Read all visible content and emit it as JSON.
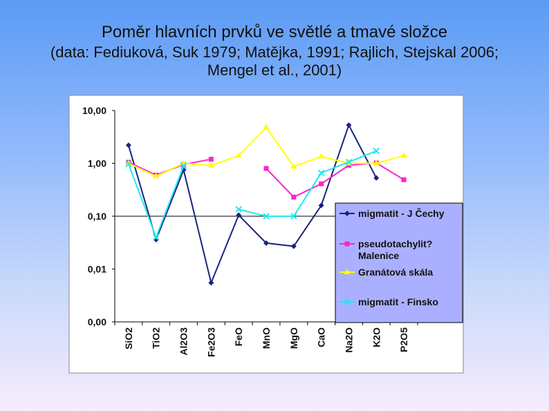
{
  "title": {
    "line1": "Poměr hlavních prvků ve světlé a tmavé složce",
    "line2": "(data: Fediuková, Suk 1979; Matějka, 1991; Rajlich, Stejskal 2006;",
    "line3": "Mengel et al., 2001)"
  },
  "chart_data": {
    "type": "line",
    "yscale": "log",
    "ylim": [
      0.001,
      10
    ],
    "y_tick_labels": [
      "10,00",
      "1,00",
      "0,10",
      "0,01",
      "0,00"
    ],
    "y_tick_values": [
      10,
      1,
      0.1,
      0.01,
      0.001
    ],
    "reference_line": 0.1,
    "categories": [
      "SiO2",
      "TiO2",
      "Al2O3",
      "Fe2O3",
      "FeO",
      "MnO",
      "MgO",
      "CaO",
      "Na2O",
      "K2O",
      "P2O5"
    ],
    "legend_position": "right",
    "series": [
      {
        "name": "migmatit - J Čechy",
        "color": "#1a237e",
        "marker": "diamond",
        "values": [
          2.2,
          0.036,
          0.75,
          0.0055,
          0.105,
          0.031,
          0.027,
          0.16,
          5.3,
          0.53,
          null
        ]
      },
      {
        "name": "pseudotachylit? Malenice",
        "name_lines": [
          "pseudotachylit?",
          "Malenice"
        ],
        "color": "#ff22cc",
        "marker": "square",
        "values": [
          1.05,
          0.6,
          0.95,
          1.2,
          null,
          0.8,
          0.23,
          0.41,
          0.92,
          1.02,
          0.49
        ]
      },
      {
        "name": "Granátová skála",
        "color": "#ffff00",
        "marker": "triangle",
        "values": [
          1.0,
          0.57,
          1.0,
          0.91,
          1.4,
          4.8,
          0.87,
          1.35,
          1.0,
          1.0,
          1.4
        ]
      },
      {
        "name": "migmatit - Finsko",
        "color": "#22e8f0",
        "marker": "x",
        "values": [
          0.97,
          0.04,
          0.9,
          null,
          0.135,
          0.1,
          0.1,
          0.66,
          1.06,
          1.72,
          null
        ]
      }
    ]
  }
}
